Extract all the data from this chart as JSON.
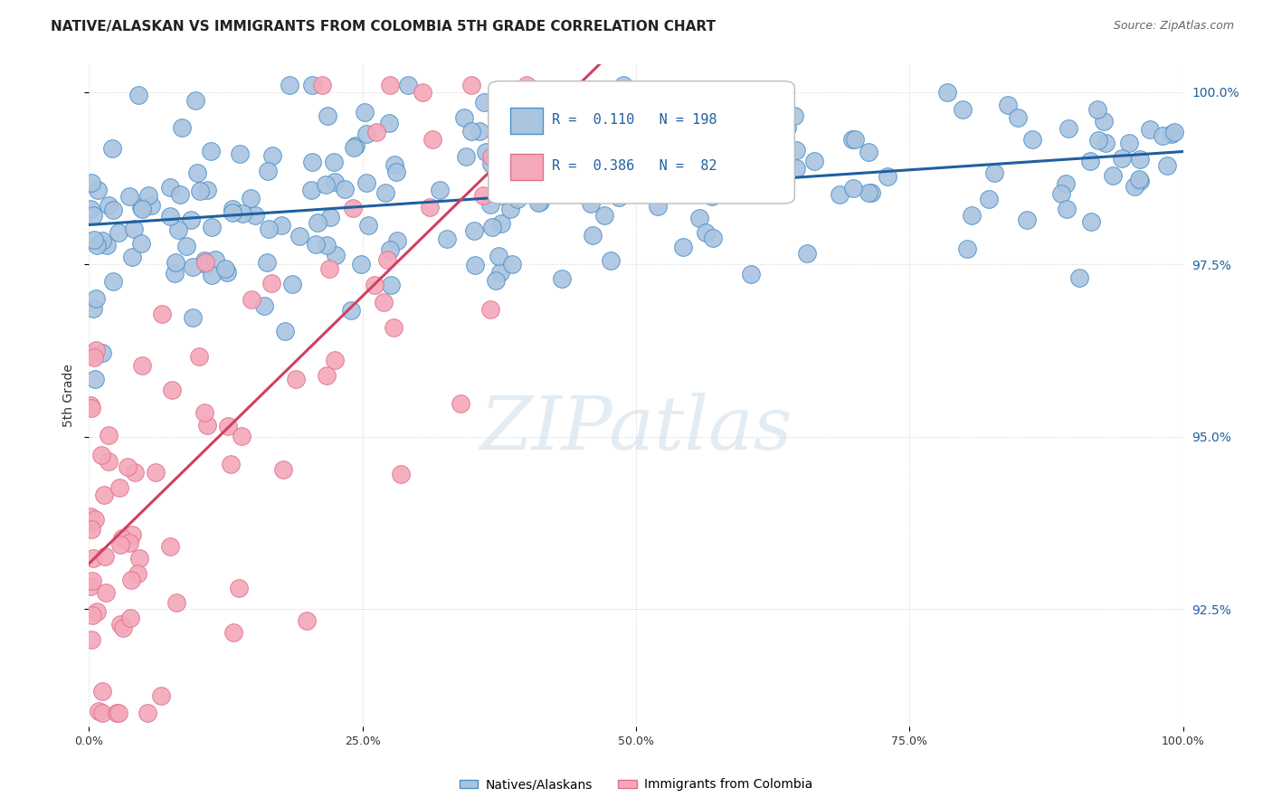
{
  "title": "NATIVE/ALASKAN VS IMMIGRANTS FROM COLOMBIA 5TH GRADE CORRELATION CHART",
  "source": "Source: ZipAtlas.com",
  "ylabel": "5th Grade",
  "legend_entries": [
    "Natives/Alaskans",
    "Immigrants from Colombia"
  ],
  "legend_r_blue": "0.110",
  "legend_n_blue": "198",
  "legend_r_pink": "0.386",
  "legend_n_pink": "82",
  "blue_color": "#aac4e0",
  "blue_edge_color": "#4a90c8",
  "blue_line_color": "#2060a0",
  "pink_color": "#f4a8b8",
  "pink_edge_color": "#e07090",
  "pink_line_color": "#d04060",
  "background_color": "#ffffff",
  "watermark": "ZIPatlas",
  "watermark_color": "#c8d8e8",
  "title_fontsize": 11,
  "source_fontsize": 9,
  "x_range": [
    0.0,
    1.0
  ],
  "y_range": [
    0.908,
    1.004
  ],
  "y_ticks": [
    0.925,
    0.95,
    0.975,
    1.0
  ],
  "y_tick_labels": [
    "92.5%",
    "95.0%",
    "97.5%",
    "100.0%"
  ]
}
